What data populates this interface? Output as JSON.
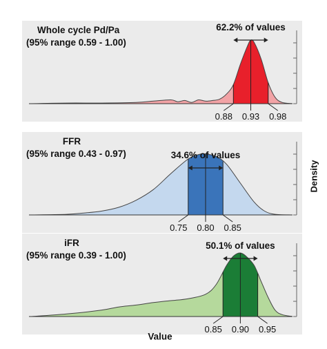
{
  "chart_data": {
    "type": "area",
    "xlabel": "Value",
    "ylabel": "Density",
    "panels": [
      {
        "title_line1": "Whole cycle Pd/Pa",
        "title_line2": "(95% range 0.59 - 1.00)",
        "percent_label": "62.2% of values",
        "x_range": [
          0.3,
          1.05
        ],
        "fill_color": "#f2a3a6",
        "band_color": "#e8202b",
        "band": [
          0.88,
          0.98
        ],
        "ticks": [
          {
            "value": 0.88,
            "label": "0.88"
          },
          {
            "value": 0.93,
            "label": "0.93"
          },
          {
            "value": 0.98,
            "label": "0.98"
          }
        ],
        "density": {
          "x": [
            0.3,
            0.4,
            0.5,
            0.6,
            0.65,
            0.7,
            0.72,
            0.74,
            0.76,
            0.78,
            0.8,
            0.82,
            0.84,
            0.86,
            0.88,
            0.9,
            0.92,
            0.93,
            0.94,
            0.96,
            0.98,
            1.0,
            1.02,
            1.05
          ],
          "y": [
            0.0,
            0.01,
            0.01,
            0.02,
            0.04,
            0.06,
            0.03,
            0.05,
            0.02,
            0.06,
            0.04,
            0.05,
            0.07,
            0.15,
            0.3,
            0.62,
            0.9,
            1.0,
            0.96,
            0.7,
            0.33,
            0.1,
            0.02,
            0.0
          ]
        }
      },
      {
        "title_line1": "FFR",
        "title_line2": "(95% range 0.43 - 0.97)",
        "percent_label": "34.6% of values",
        "x_range": [
          0.3,
          1.05
        ],
        "fill_color": "#c4d8ee",
        "band_color": "#3a74ba",
        "band": [
          0.75,
          0.85
        ],
        "ticks": [
          {
            "value": 0.75,
            "label": "0.75"
          },
          {
            "value": 0.8,
            "label": "0.80"
          },
          {
            "value": 0.85,
            "label": "0.85"
          }
        ],
        "density": {
          "x": [
            0.3,
            0.4,
            0.45,
            0.5,
            0.55,
            0.6,
            0.65,
            0.7,
            0.75,
            0.78,
            0.8,
            0.83,
            0.86,
            0.9,
            0.94,
            0.97,
            1.0,
            1.05
          ],
          "y": [
            0.0,
            0.01,
            0.03,
            0.06,
            0.12,
            0.23,
            0.4,
            0.65,
            0.88,
            0.95,
            0.96,
            0.92,
            0.8,
            0.5,
            0.2,
            0.06,
            0.01,
            0.0
          ]
        }
      },
      {
        "title_line1": "iFR",
        "title_line2": "(95% range 0.39 - 1.00)",
        "percent_label": "50.1% of values",
        "x_range": [
          0.3,
          1.05
        ],
        "fill_color": "#b5d99c",
        "band_color": "#1b7d36",
        "band": [
          0.85,
          0.95
        ],
        "ticks": [
          {
            "value": 0.85,
            "label": "0.85"
          },
          {
            "value": 0.9,
            "label": "0.90"
          },
          {
            "value": 0.95,
            "label": "0.95"
          }
        ],
        "density": {
          "x": [
            0.3,
            0.4,
            0.5,
            0.55,
            0.6,
            0.65,
            0.7,
            0.75,
            0.8,
            0.83,
            0.86,
            0.88,
            0.9,
            0.92,
            0.94,
            0.96,
            0.98,
            1.0,
            1.02,
            1.05
          ],
          "y": [
            0.0,
            0.04,
            0.1,
            0.15,
            0.18,
            0.22,
            0.25,
            0.28,
            0.35,
            0.5,
            0.8,
            0.95,
            1.0,
            0.93,
            0.8,
            0.55,
            0.3,
            0.1,
            0.03,
            0.0
          ]
        }
      }
    ]
  }
}
